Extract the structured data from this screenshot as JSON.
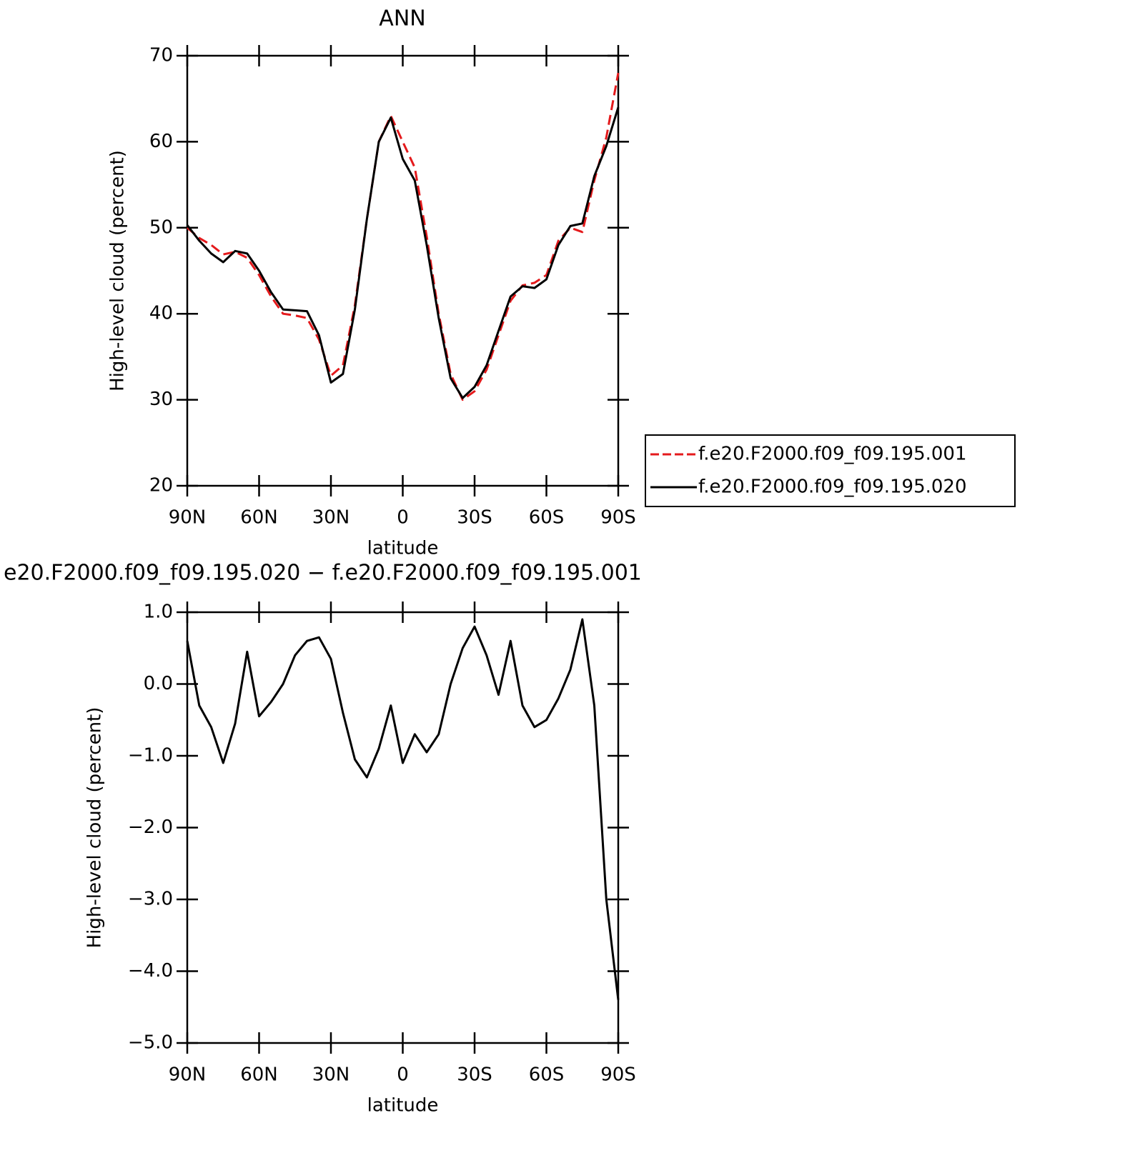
{
  "chart_data": [
    {
      "type": "line",
      "title": "ANN",
      "xlabel": "latitude",
      "ylabel": "High-level cloud (percent)",
      "x": [
        90,
        85,
        80,
        75,
        70,
        65,
        60,
        55,
        50,
        45,
        40,
        35,
        30,
        25,
        20,
        15,
        10,
        5,
        0,
        -5,
        -10,
        -15,
        -20,
        -25,
        -30,
        -35,
        -40,
        -45,
        -50,
        -55,
        -60,
        -65,
        -70,
        -75,
        -80,
        -85,
        -90
      ],
      "xlim": [
        90,
        -90
      ],
      "xticks": [
        {
          "value": 90,
          "label": "90N"
        },
        {
          "value": 60,
          "label": "60N"
        },
        {
          "value": 30,
          "label": "30N"
        },
        0,
        {
          "value": -30,
          "label": "30S"
        },
        {
          "value": -60,
          "label": "60S"
        },
        {
          "value": -90,
          "label": "90S"
        }
      ],
      "ylim": [
        20,
        70
      ],
      "yticks": [
        20,
        30,
        40,
        50,
        60,
        70
      ],
      "legend": "right",
      "series": [
        {
          "name": "f.e20.F2000.f09_f09.195.001",
          "color": "#e41a1c",
          "dashed": true,
          "values": [
            50.0,
            48.8,
            48.0,
            46.9,
            47.2,
            46.5,
            44.5,
            42.0,
            40.0,
            39.8,
            39.5,
            37.0,
            32.8,
            34.0,
            41.0,
            51.0,
            60.0,
            63.0,
            60.0,
            57.0,
            49.0,
            40.0,
            33.0,
            30.0,
            31.0,
            33.5,
            37.5,
            41.5,
            43.3,
            43.6,
            44.5,
            48.5,
            50.0,
            49.5,
            55.5,
            60.5,
            68.0
          ]
        },
        {
          "name": "f.e20.F2000.f09_f09.195.020",
          "color": "#000000",
          "dashed": false,
          "values": [
            50.3,
            48.5,
            47.0,
            46.0,
            47.3,
            47.0,
            45.0,
            42.5,
            40.5,
            40.4,
            40.3,
            37.5,
            32.0,
            33.0,
            40.5,
            51.0,
            60.0,
            62.8,
            58.0,
            55.5,
            48.0,
            39.5,
            32.5,
            30.2,
            31.5,
            34.0,
            38.0,
            42.0,
            43.2,
            43.0,
            44.0,
            48.0,
            50.2,
            50.5,
            56.0,
            59.5,
            64.0
          ]
        }
      ]
    },
    {
      "type": "line",
      "title": "e20.F2000.f09_f09.195.020 − f.e20.F2000.f09_f09.195.001",
      "xlabel": "latitude",
      "ylabel": "High-level cloud (percent)",
      "x": [
        90,
        85,
        80,
        75,
        70,
        65,
        60,
        55,
        50,
        45,
        40,
        35,
        30,
        25,
        20,
        15,
        10,
        5,
        0,
        -5,
        -10,
        -15,
        -20,
        -25,
        -30,
        -35,
        -40,
        -45,
        -50,
        -55,
        -60,
        -65,
        -70,
        -75,
        -80,
        -85,
        -90
      ],
      "xlim": [
        90,
        -90
      ],
      "xticks": [
        {
          "value": 90,
          "label": "90N"
        },
        {
          "value": 60,
          "label": "60N"
        },
        {
          "value": 30,
          "label": "30N"
        },
        0,
        {
          "value": -30,
          "label": "30S"
        },
        {
          "value": -60,
          "label": "60S"
        },
        {
          "value": -90,
          "label": "90S"
        }
      ],
      "ylim": [
        -5,
        1
      ],
      "yticks": [
        {
          "value": 1,
          "label": "1.0"
        },
        {
          "value": 0,
          "label": "0.0"
        },
        {
          "value": -1,
          "label": "−1.0"
        },
        {
          "value": -2,
          "label": "−2.0"
        },
        {
          "value": -3,
          "label": "−3.0"
        },
        {
          "value": -4,
          "label": "−4.0"
        },
        {
          "value": -5,
          "label": "−5.0"
        }
      ],
      "series": [
        {
          "color": "#000000",
          "dashed": false,
          "values": [
            0.6,
            -0.3,
            -0.6,
            -1.1,
            -0.55,
            0.45,
            -0.45,
            -0.25,
            0.0,
            0.4,
            0.6,
            0.65,
            0.35,
            -0.4,
            -1.05,
            -1.3,
            -0.9,
            -0.3,
            -1.1,
            -0.7,
            -0.95,
            -0.7,
            0.0,
            0.5,
            0.8,
            0.4,
            -0.15,
            0.6,
            -0.3,
            -0.6,
            -0.5,
            -0.2,
            0.2,
            0.9,
            -0.3,
            -3.0,
            -4.4
          ]
        }
      ]
    }
  ]
}
